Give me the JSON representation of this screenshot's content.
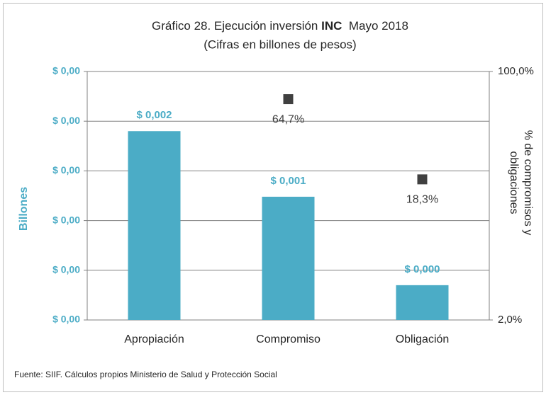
{
  "chart_data": {
    "type": "bar",
    "title": [
      "Gráfico 28. Ejecución inversión ",
      "INC",
      "  Mayo 2018"
    ],
    "subtitle": "(Cifras en billones de pesos)",
    "y_label": "Billones",
    "y2_label": [
      "% de compromisos y",
      "obligaciones"
    ],
    "source": "Fuente: SIIF. Cálculos propios Ministerio de Salud y Protección Social",
    "categories": [
      "Apropiación",
      "Compromiso",
      "Obligación"
    ],
    "series": [
      {
        "type": "bar",
        "color": "#4bacc6",
        "values": [
          0.0019,
          0.00124,
          0.00035
        ],
        "value_labels": [
          "$ 0,002",
          "$ 0,001",
          "$ 0,000"
        ]
      },
      {
        "type": "scatter",
        "axis": "y2",
        "color": "#404040",
        "values": [
          null,
          64.7,
          18.3
        ],
        "value_labels": [
          null,
          "64,7%",
          "18,3%"
        ]
      }
    ],
    "ylim": [
      0,
      0.0025
    ],
    "yticks": [
      {
        "value": 0,
        "label": "$ 0,00"
      },
      {
        "value": 0.0005,
        "label": "$ 0,00"
      },
      {
        "value": 0.001,
        "label": "$ 0,00"
      },
      {
        "value": 0.0015,
        "label": "$ 0,00"
      },
      {
        "value": 0.002,
        "label": "$ 0,00"
      },
      {
        "value": 0.0025,
        "label": "$ 0,00"
      }
    ],
    "y2lim": [
      2,
      100
    ],
    "y2ticks": [
      {
        "value": 2,
        "label": "2,0%"
      },
      {
        "value": 100,
        "label": "100,0%"
      }
    ],
    "y2log": true,
    "grid": true
  }
}
